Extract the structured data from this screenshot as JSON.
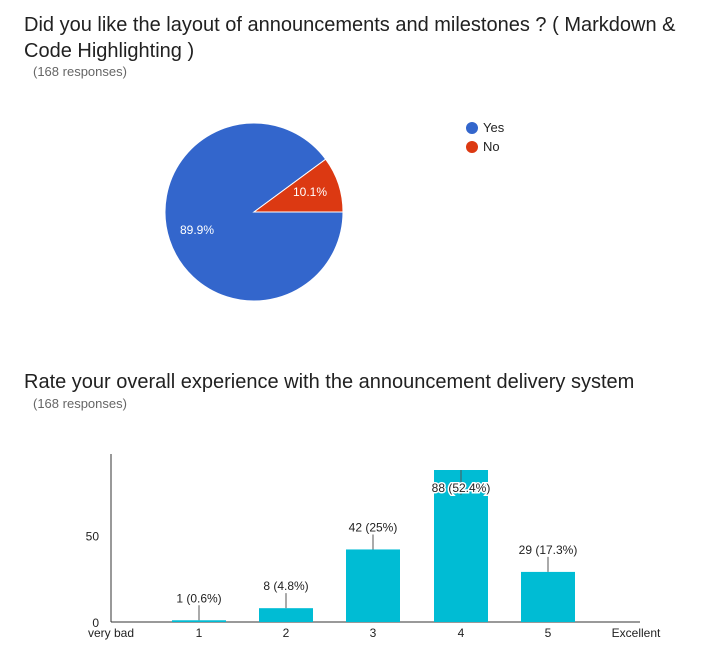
{
  "questions": [
    {
      "title": "Did you like the layout of announcements and milestones ? ( Markdown & Code Highlighting )",
      "responses": "(168 responses)"
    },
    {
      "title": "Rate your overall experience with the announcement delivery system",
      "responses": "(168 responses)"
    }
  ],
  "chart_data": [
    {
      "type": "pie",
      "slices": [
        {
          "label": "Yes",
          "value": 89.9,
          "display": "89.9%",
          "color": "#3366cc"
        },
        {
          "label": "No",
          "value": 10.1,
          "display": "10.1%",
          "color": "#dc3912"
        }
      ],
      "legend": [
        "Yes",
        "No"
      ],
      "legend_position": "right"
    },
    {
      "type": "bar",
      "categories": [
        "1",
        "2",
        "3",
        "4",
        "5"
      ],
      "values": [
        1,
        8,
        42,
        88,
        29
      ],
      "value_labels": [
        "1 (0.6%)",
        "8 (4.8%)",
        "42 (25%)",
        "88 (52.4%)",
        "29 (17.3%)"
      ],
      "x_min_label": "very bad",
      "x_max_label": "Excellent",
      "yticks": [
        0,
        50
      ],
      "ylim": [
        0,
        90
      ],
      "bar_color": "#00bcd4",
      "grid": false
    }
  ]
}
